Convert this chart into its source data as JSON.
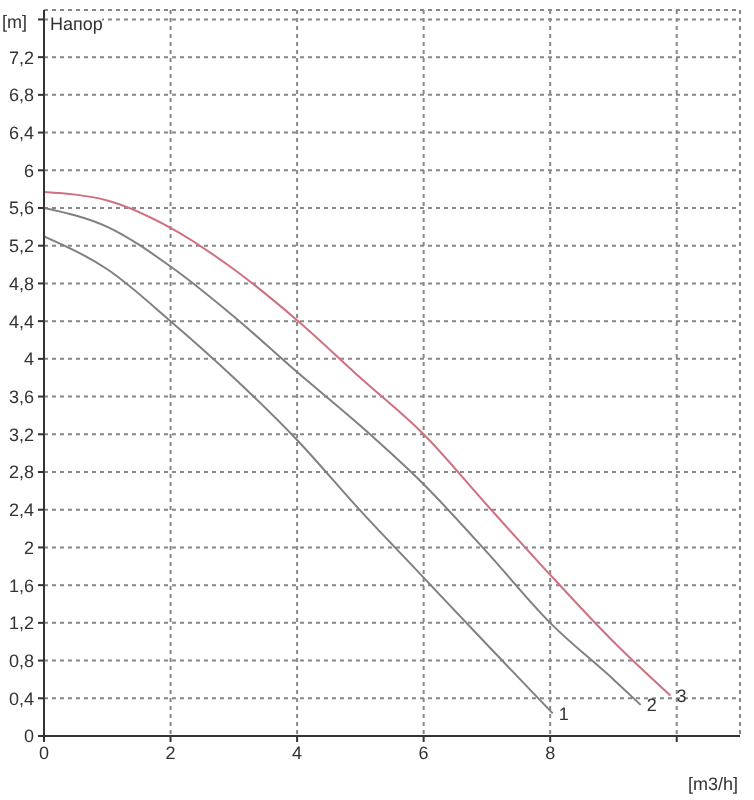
{
  "chart_data": {
    "type": "line",
    "title": "Напор",
    "xlabel": "[m3/h]",
    "ylabel": "[m]",
    "series": [
      {
        "color": "#808080",
        "x": [
          0,
          1,
          2,
          3,
          4,
          5,
          6,
          7,
          8.04
        ],
        "values": [
          5.3,
          4.95,
          4.4,
          3.8,
          3.14,
          2.39,
          1.68,
          0.97,
          0.24
        ]
      },
      {
        "color": "#808080",
        "x": [
          0,
          1,
          2,
          3,
          4,
          5,
          6,
          7,
          8,
          9,
          9.43
        ],
        "values": [
          5.6,
          5.4,
          4.98,
          4.45,
          3.86,
          3.29,
          2.67,
          1.95,
          1.2,
          0.6,
          0.33
        ]
      },
      {
        "color": "#d07080",
        "x": [
          0,
          1,
          2,
          3,
          4,
          5,
          6,
          7,
          8,
          9,
          9.9
        ],
        "values": [
          5.77,
          5.68,
          5.39,
          4.95,
          4.41,
          3.8,
          3.2,
          2.45,
          1.71,
          1.0,
          0.43
        ]
      }
    ],
    "annotations": [
      {
        "text": "1",
        "x": 8.04,
        "y": 0.24
      },
      {
        "text": "2",
        "x": 9.43,
        "y": 0.33
      },
      {
        "text": "3",
        "x": 9.9,
        "y": 0.43
      }
    ],
    "xlim": [
      0,
      11
    ],
    "xticks": [
      0,
      2,
      4,
      6,
      8,
      {
        "value": 10,
        "label": null
      }
    ],
    "ylim": [
      0,
      7.7
    ],
    "yticks": [
      0,
      {
        "value": 0.4,
        "label": "0,4"
      },
      {
        "value": 0.8,
        "label": "0,8"
      },
      {
        "value": 1.2,
        "label": "1,2"
      },
      {
        "value": 1.6,
        "label": "1,6"
      },
      2,
      {
        "value": 2.4,
        "label": "2,4"
      },
      {
        "value": 2.8,
        "label": "2,8"
      },
      {
        "value": 3.2,
        "label": "3,2"
      },
      {
        "value": 3.6,
        "label": "3,6"
      },
      4,
      {
        "value": 4.4,
        "label": "4,4"
      },
      {
        "value": 4.8,
        "label": "4,8"
      },
      {
        "value": 5.2,
        "label": "5,2"
      },
      {
        "value": 5.6,
        "label": "5,6"
      },
      6,
      {
        "value": 6.4,
        "label": "6,4"
      },
      {
        "value": 6.8,
        "label": "6,8"
      },
      {
        "value": 7.2,
        "label": "7,2"
      },
      {
        "value": 7.6,
        "label": null
      }
    ],
    "grid": true,
    "marker": "none",
    "line_style": "solid"
  }
}
